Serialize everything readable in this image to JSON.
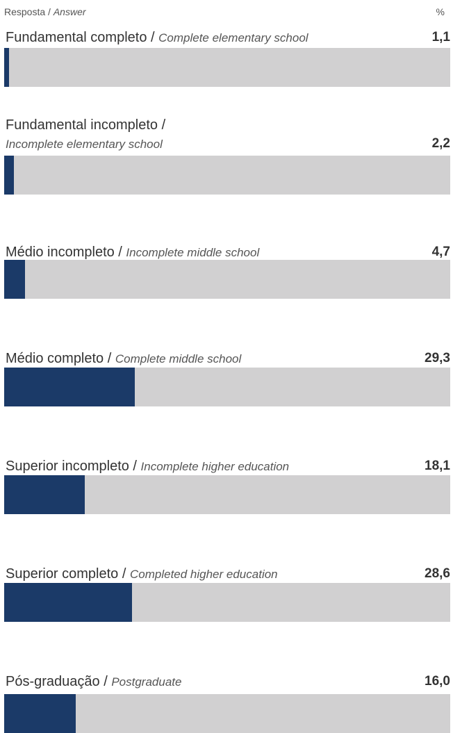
{
  "header": {
    "left_pt": "Resposta / ",
    "left_en": "Answer",
    "right": "%"
  },
  "colors": {
    "fill": "#1b3a68",
    "track": "#d1d0d1"
  },
  "chart_data": {
    "type": "bar",
    "orientation": "horizontal",
    "xlim": [
      0,
      100
    ],
    "categories": [
      {
        "pt": "Fundamental completo / ",
        "en": "Complete elementary school"
      },
      {
        "pt": "Fundamental incompleto / ",
        "en": "Incomplete elementary school"
      },
      {
        "pt": "Médio incompleto / ",
        "en": "Incomplete middle school"
      },
      {
        "pt": "Médio completo / ",
        "en": "Complete middle school"
      },
      {
        "pt": "Superior incompleto / ",
        "en": "Incomplete higher education"
      },
      {
        "pt": "Superior completo / ",
        "en": "Completed higher education"
      },
      {
        "pt": "Pós-graduação / ",
        "en": "Postgraduate"
      }
    ],
    "values": [
      1.1,
      2.2,
      4.7,
      29.3,
      18.1,
      28.6,
      16.0
    ],
    "value_labels": [
      "1,1",
      "2,2",
      "4,7",
      "29,3",
      "18,1",
      "28,6",
      "16,0"
    ]
  }
}
